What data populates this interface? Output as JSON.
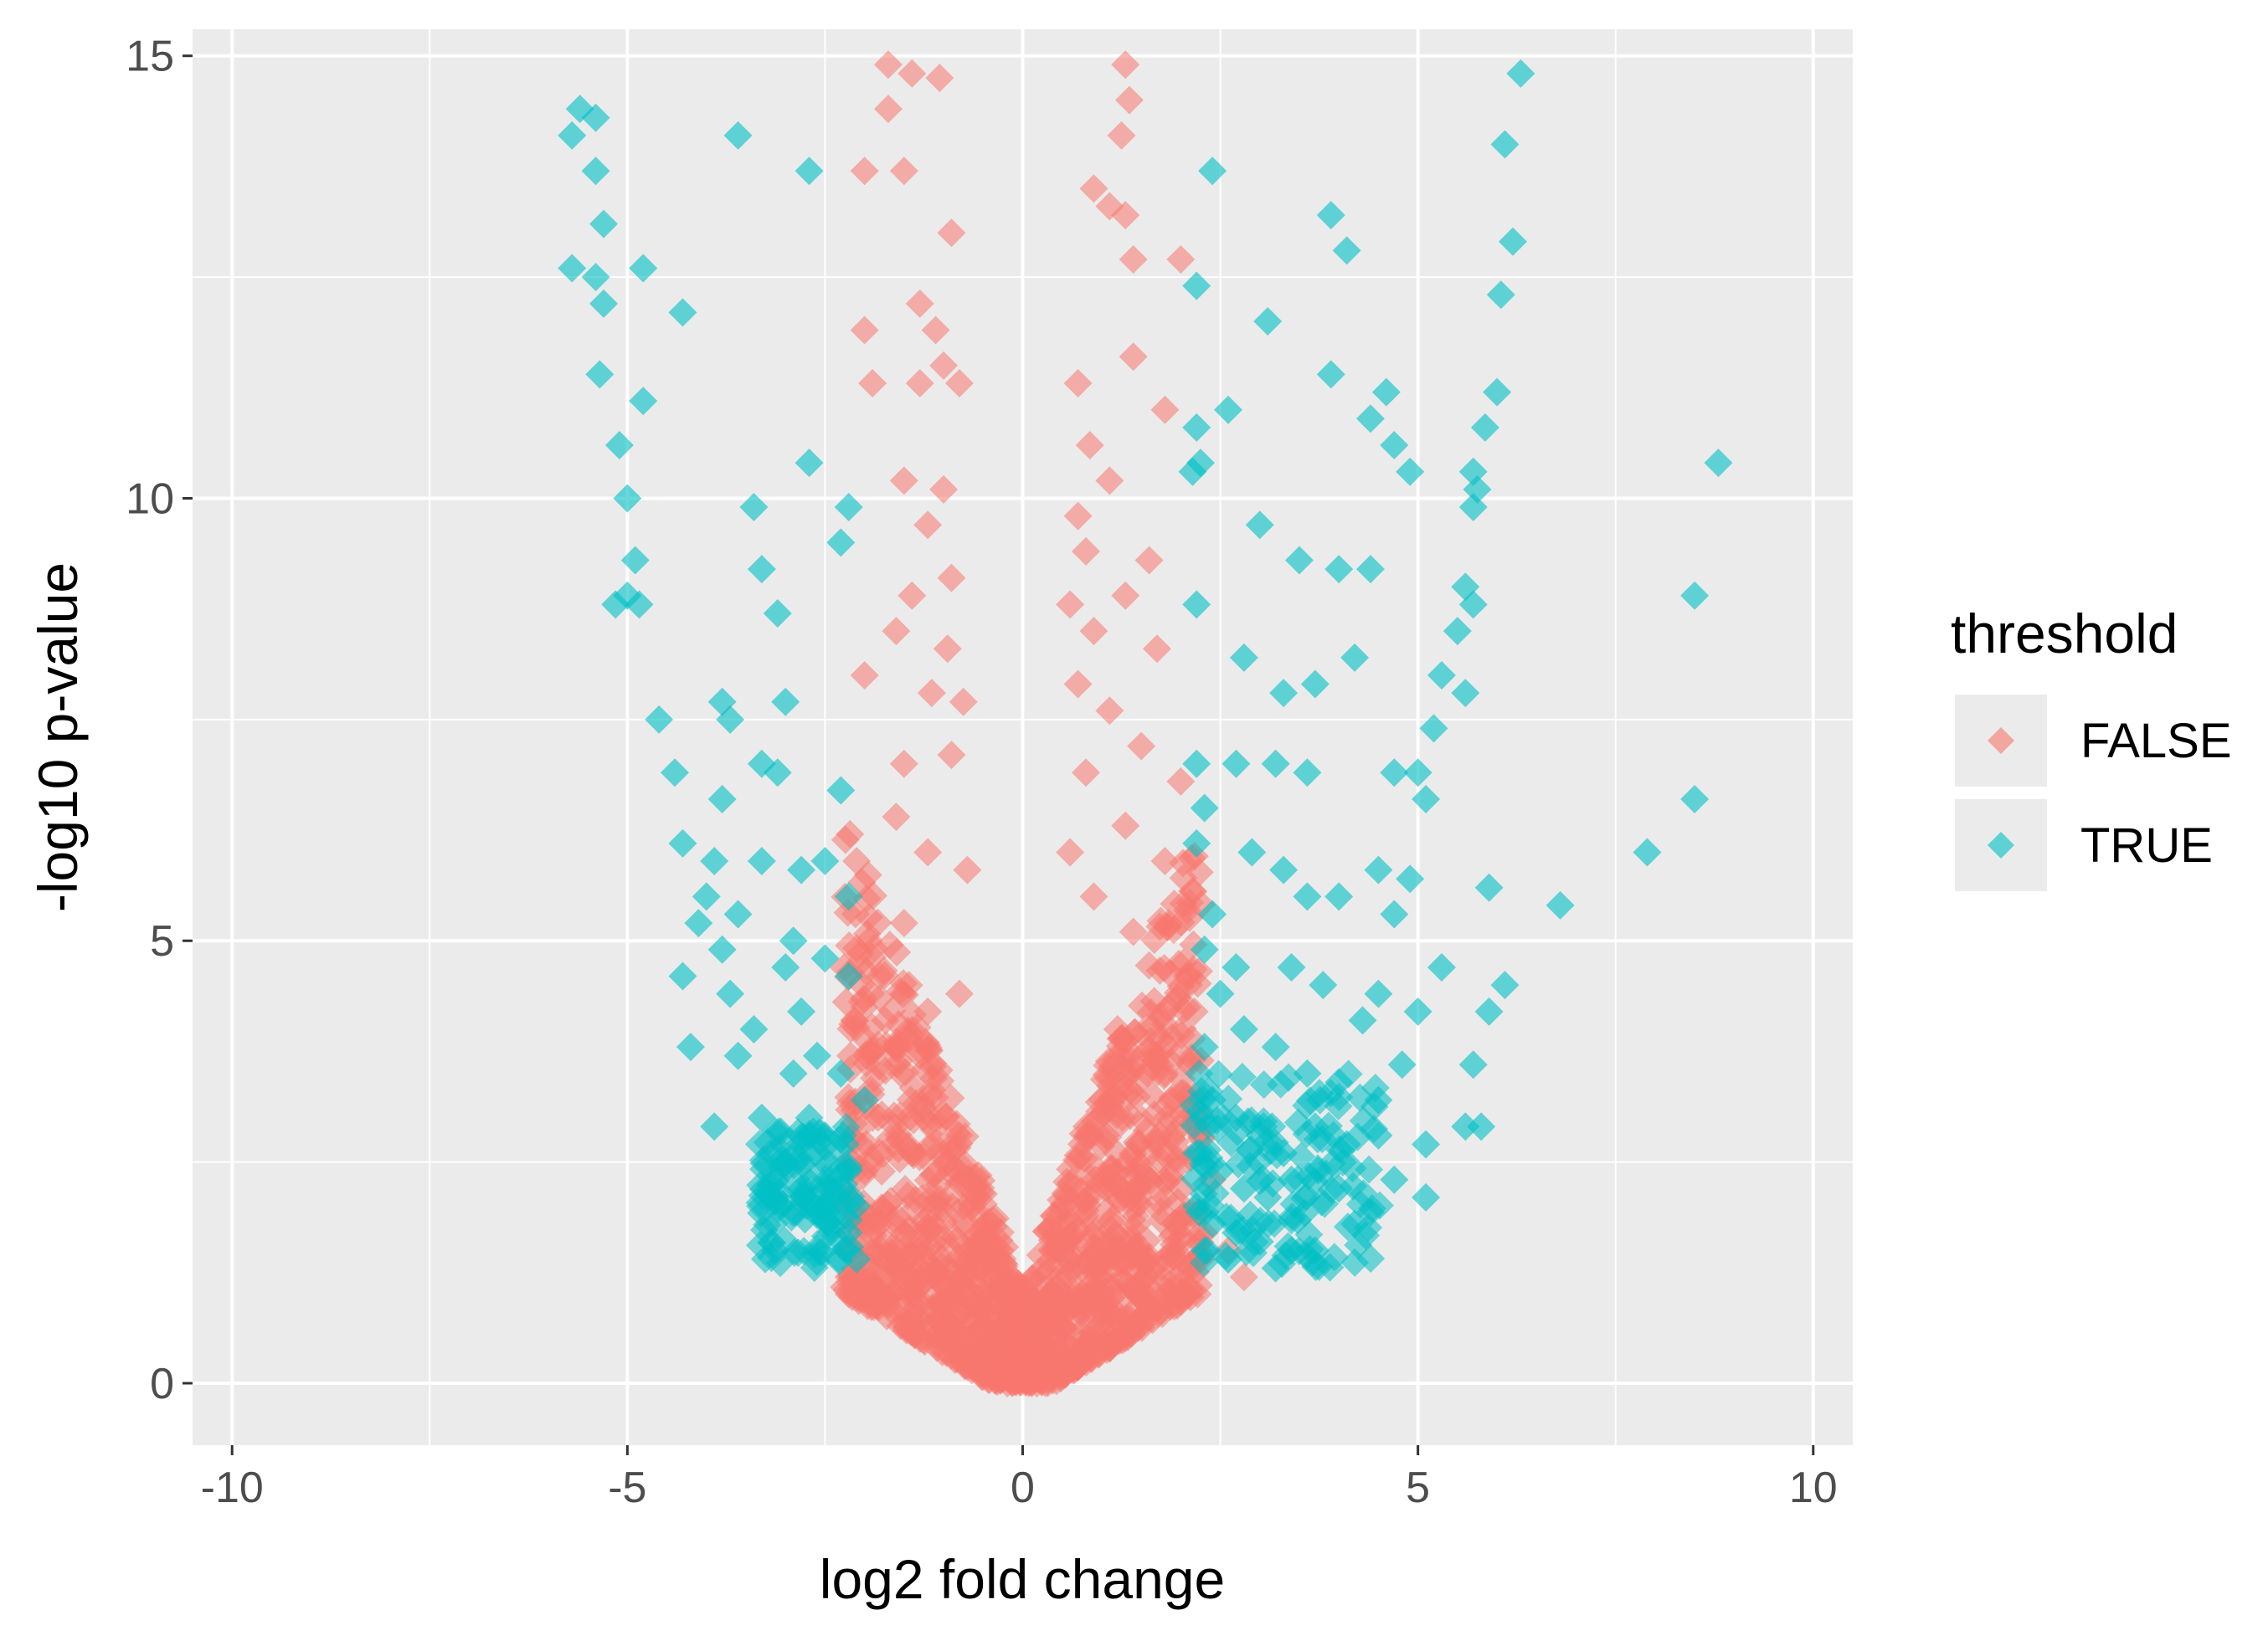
{
  "chart_data": {
    "type": "scatter",
    "title": "",
    "xlabel": "log2 fold change",
    "ylabel": "-log10 p-value",
    "xlim": [
      -10.5,
      10.5
    ],
    "ylim": [
      -0.7,
      15.3
    ],
    "x_ticks": [
      -10,
      -5,
      0,
      5,
      10
    ],
    "y_ticks": [
      0,
      5,
      10,
      15
    ],
    "x_tick_labels": [
      "-10",
      "-5",
      "0",
      "5",
      "10"
    ],
    "y_tick_labels": [
      "0",
      "5",
      "10",
      "15"
    ],
    "grid": true,
    "legend": {
      "title": "threshold",
      "position": "right",
      "entries": [
        {
          "label": "FALSE",
          "color": "#F8766D"
        },
        {
          "label": "TRUE",
          "color": "#00BFC4"
        }
      ]
    },
    "marker": "diamond",
    "colors": {
      "FALSE": "#F8766D",
      "TRUE": "#00BFC4",
      "panel": "#EBEBEB",
      "grid": "#FFFFFF"
    },
    "series": [
      {
        "name": "FALSE",
        "color": "#F8766D",
        "points": [
          [
            -1.7,
            14.9
          ],
          [
            -1.4,
            14.8
          ],
          [
            -1.05,
            14.75
          ],
          [
            -1.7,
            14.4
          ],
          [
            -2.0,
            13.7
          ],
          [
            -1.5,
            13.7
          ],
          [
            -0.9,
            13.0
          ],
          [
            -2.0,
            11.9
          ],
          [
            -1.3,
            12.2
          ],
          [
            -1.1,
            11.9
          ],
          [
            -1.0,
            11.5
          ],
          [
            -1.9,
            11.3
          ],
          [
            -1.3,
            11.3
          ],
          [
            -0.8,
            11.3
          ],
          [
            -1.5,
            10.2
          ],
          [
            -1.0,
            10.1
          ],
          [
            -1.2,
            9.7
          ],
          [
            -0.9,
            9.1
          ],
          [
            -1.4,
            8.9
          ],
          [
            -1.6,
            8.5
          ],
          [
            -0.95,
            8.3
          ],
          [
            -1.15,
            7.8
          ],
          [
            -0.75,
            7.7
          ],
          [
            -2.0,
            8.0
          ],
          [
            -1.5,
            7.0
          ],
          [
            -0.9,
            7.1
          ],
          [
            -1.6,
            6.4
          ],
          [
            -1.2,
            6.0
          ],
          [
            -2.1,
            5.9
          ],
          [
            -0.7,
            5.8
          ],
          [
            -1.5,
            5.2
          ],
          [
            -1.8,
            4.6
          ],
          [
            -0.8,
            4.4
          ],
          [
            -1.2,
            4.2
          ],
          [
            1.3,
            14.9
          ],
          [
            1.35,
            14.5
          ],
          [
            1.25,
            14.1
          ],
          [
            0.9,
            13.5
          ],
          [
            1.1,
            13.3
          ],
          [
            1.3,
            13.2
          ],
          [
            1.4,
            12.7
          ],
          [
            2.0,
            12.7
          ],
          [
            1.4,
            11.6
          ],
          [
            0.7,
            11.3
          ],
          [
            1.8,
            11.0
          ],
          [
            0.85,
            10.6
          ],
          [
            1.1,
            10.2
          ],
          [
            0.7,
            9.8
          ],
          [
            0.8,
            9.4
          ],
          [
            1.6,
            9.3
          ],
          [
            0.6,
            8.8
          ],
          [
            1.3,
            8.9
          ],
          [
            0.9,
            8.5
          ],
          [
            1.7,
            8.3
          ],
          [
            0.7,
            7.9
          ],
          [
            1.1,
            7.6
          ],
          [
            1.5,
            7.2
          ],
          [
            0.8,
            6.9
          ],
          [
            2.0,
            6.8
          ],
          [
            1.3,
            6.3
          ],
          [
            0.6,
            6.0
          ],
          [
            1.8,
            5.9
          ],
          [
            0.9,
            5.5
          ],
          [
            1.4,
            5.1
          ],
          [
            2.1,
            4.5
          ],
          [
            1.2,
            4.0
          ],
          [
            1.8,
            3.5
          ],
          [
            2.2,
            3.0
          ],
          [
            2.4,
            2.3
          ],
          [
            2.8,
            1.2
          ],
          [
            2.6,
            1.5
          ],
          [
            2.3,
            1.7
          ],
          [
            -2.1,
            2.4
          ],
          [
            -1.9,
            3.0
          ],
          [
            -1.6,
            3.8
          ],
          [
            -2.2,
            2.0
          ]
        ]
      },
      {
        "name": "TRUE",
        "color": "#00BFC4",
        "points": [
          [
            -5.6,
            14.4
          ],
          [
            -5.4,
            14.3
          ],
          [
            -5.7,
            14.1
          ],
          [
            -5.4,
            13.7
          ],
          [
            -5.3,
            13.1
          ],
          [
            -5.7,
            12.6
          ],
          [
            -5.4,
            12.5
          ],
          [
            -5.3,
            12.2
          ],
          [
            -4.8,
            12.6
          ],
          [
            -4.3,
            12.1
          ],
          [
            -3.6,
            14.1
          ],
          [
            -2.7,
            13.7
          ],
          [
            -5.35,
            11.4
          ],
          [
            -4.8,
            11.1
          ],
          [
            -5.1,
            10.6
          ],
          [
            -5.0,
            10.0
          ],
          [
            -4.9,
            9.3
          ],
          [
            -5.0,
            8.9
          ],
          [
            -5.15,
            8.8
          ],
          [
            -4.85,
            8.8
          ],
          [
            -2.7,
            10.4
          ],
          [
            -3.4,
            9.9
          ],
          [
            -2.2,
            9.9
          ],
          [
            -3.3,
            9.2
          ],
          [
            -2.3,
            9.5
          ],
          [
            -3.1,
            8.7
          ],
          [
            -4.6,
            7.5
          ],
          [
            -3.8,
            7.7
          ],
          [
            -3.7,
            7.5
          ],
          [
            -3.0,
            7.7
          ],
          [
            -3.3,
            7.0
          ],
          [
            -3.1,
            6.9
          ],
          [
            -2.3,
            6.7
          ],
          [
            -4.4,
            6.9
          ],
          [
            -3.8,
            6.6
          ],
          [
            -4.3,
            6.1
          ],
          [
            -3.9,
            5.9
          ],
          [
            -3.3,
            5.9
          ],
          [
            -2.8,
            5.8
          ],
          [
            -2.5,
            5.9
          ],
          [
            -2.2,
            5.5
          ],
          [
            -4.1,
            5.2
          ],
          [
            -4.0,
            5.5
          ],
          [
            -3.6,
            5.3
          ],
          [
            -3.8,
            4.9
          ],
          [
            -2.9,
            5.0
          ],
          [
            -2.5,
            4.8
          ],
          [
            -2.2,
            4.6
          ],
          [
            -4.3,
            4.6
          ],
          [
            -3.7,
            4.4
          ],
          [
            -3.0,
            4.7
          ],
          [
            -2.8,
            4.2
          ],
          [
            -3.4,
            4.0
          ],
          [
            -3.6,
            3.7
          ],
          [
            -4.2,
            3.8
          ],
          [
            -2.9,
            3.5
          ],
          [
            -2.6,
            3.7
          ],
          [
            -2.3,
            3.5
          ],
          [
            -2.0,
            3.2
          ],
          [
            -3.9,
            2.9
          ],
          [
            -3.3,
            3.0
          ],
          [
            -2.7,
            3.0
          ],
          [
            -2.5,
            2.8
          ],
          [
            -3.0,
            2.5
          ],
          [
            -2.8,
            2.2
          ],
          [
            -2.4,
            2.1
          ],
          [
            -2.2,
            2.4
          ],
          [
            -2.1,
            2.0
          ],
          [
            -2.6,
            1.9
          ],
          [
            -2.2,
            1.7
          ],
          [
            -2.1,
            1.4
          ],
          [
            6.3,
            14.8
          ],
          [
            6.1,
            14.0
          ],
          [
            6.2,
            12.9
          ],
          [
            6.05,
            12.3
          ],
          [
            6.0,
            11.2
          ],
          [
            5.85,
            10.8
          ],
          [
            5.7,
            10.3
          ],
          [
            5.75,
            10.1
          ],
          [
            5.7,
            9.9
          ],
          [
            8.8,
            10.4
          ],
          [
            8.5,
            8.9
          ],
          [
            8.5,
            6.6
          ],
          [
            7.9,
            6.0
          ],
          [
            6.8,
            5.4
          ],
          [
            3.9,
            13.2
          ],
          [
            4.1,
            12.8
          ],
          [
            2.4,
            13.7
          ],
          [
            3.1,
            12.0
          ],
          [
            2.2,
            12.4
          ],
          [
            3.9,
            11.4
          ],
          [
            4.6,
            11.2
          ],
          [
            4.4,
            10.9
          ],
          [
            4.7,
            10.6
          ],
          [
            4.9,
            10.3
          ],
          [
            2.6,
            11.0
          ],
          [
            2.2,
            10.8
          ],
          [
            2.25,
            10.4
          ],
          [
            2.15,
            10.3
          ],
          [
            3.0,
            9.7
          ],
          [
            3.5,
            9.3
          ],
          [
            4.0,
            9.2
          ],
          [
            4.4,
            9.2
          ],
          [
            2.2,
            8.8
          ],
          [
            5.6,
            9.0
          ],
          [
            5.7,
            8.8
          ],
          [
            5.5,
            8.5
          ],
          [
            5.3,
            8.0
          ],
          [
            5.6,
            7.8
          ],
          [
            5.2,
            7.4
          ],
          [
            5.0,
            6.9
          ],
          [
            4.7,
            6.9
          ],
          [
            5.1,
            6.6
          ],
          [
            2.8,
            8.2
          ],
          [
            3.3,
            7.8
          ],
          [
            3.7,
            7.9
          ],
          [
            4.2,
            8.2
          ],
          [
            2.2,
            7.0
          ],
          [
            2.7,
            7.0
          ],
          [
            3.2,
            7.0
          ],
          [
            3.6,
            6.9
          ],
          [
            2.3,
            6.5
          ],
          [
            2.2,
            6.1
          ],
          [
            2.9,
            6.0
          ],
          [
            3.3,
            5.8
          ],
          [
            3.6,
            5.5
          ],
          [
            4.0,
            5.5
          ],
          [
            4.5,
            5.8
          ],
          [
            4.9,
            5.7
          ],
          [
            4.7,
            5.3
          ],
          [
            5.9,
            5.6
          ],
          [
            2.4,
            5.3
          ],
          [
            2.3,
            4.9
          ],
          [
            2.7,
            4.7
          ],
          [
            3.4,
            4.7
          ],
          [
            3.8,
            4.5
          ],
          [
            4.5,
            4.4
          ],
          [
            4.3,
            4.1
          ],
          [
            5.3,
            4.7
          ],
          [
            6.1,
            4.5
          ],
          [
            5.9,
            4.2
          ],
          [
            5.0,
            4.2
          ],
          [
            2.5,
            4.4
          ],
          [
            2.8,
            4.0
          ],
          [
            3.2,
            3.8
          ],
          [
            3.6,
            3.5
          ],
          [
            4.0,
            3.4
          ],
          [
            4.5,
            3.2
          ],
          [
            4.8,
            3.6
          ],
          [
            5.7,
            3.6
          ],
          [
            2.3,
            3.8
          ],
          [
            2.4,
            3.2
          ],
          [
            2.7,
            3.0
          ],
          [
            3.0,
            2.8
          ],
          [
            3.3,
            2.6
          ],
          [
            3.7,
            2.9
          ],
          [
            4.1,
            2.7
          ],
          [
            4.5,
            2.8
          ],
          [
            5.1,
            2.7
          ],
          [
            5.6,
            2.9
          ],
          [
            5.8,
            2.9
          ],
          [
            2.2,
            2.6
          ],
          [
            2.5,
            2.4
          ],
          [
            2.8,
            2.2
          ],
          [
            3.1,
            2.1
          ],
          [
            3.4,
            2.3
          ],
          [
            4.0,
            2.2
          ],
          [
            4.7,
            2.3
          ],
          [
            5.1,
            2.1
          ],
          [
            2.2,
            2.0
          ],
          [
            2.4,
            1.8
          ],
          [
            2.7,
            1.7
          ],
          [
            3.0,
            1.6
          ],
          [
            3.4,
            1.5
          ],
          [
            3.7,
            1.5
          ],
          [
            3.2,
            1.3
          ],
          [
            4.2,
            1.8
          ],
          [
            2.3,
            1.5
          ],
          [
            2.6,
            1.4
          ]
        ]
      }
    ]
  }
}
